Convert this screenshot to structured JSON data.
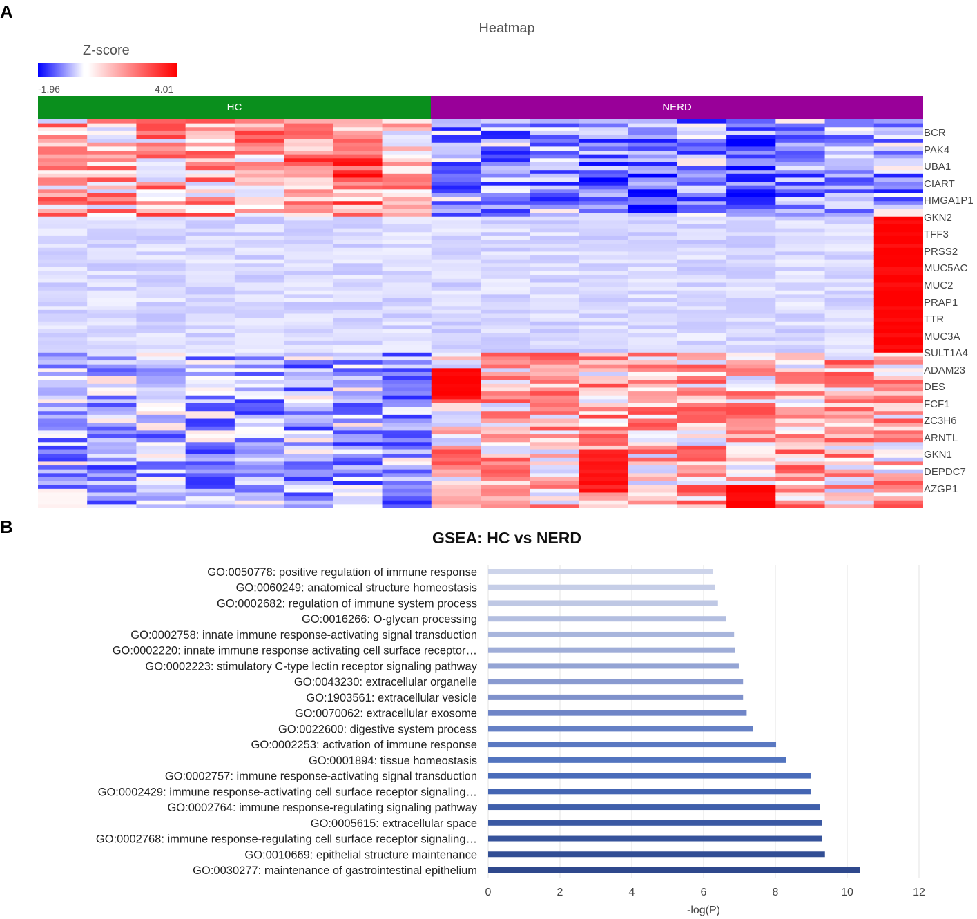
{
  "panel_a": {
    "letter": "A",
    "title": "Heatmap",
    "colorbar": {
      "title": "Z-score",
      "min": "-1.96",
      "max": "4.01",
      "low_color": "#0000ff",
      "mid_color": "#ffffff",
      "high_color": "#ff0000"
    },
    "groups": [
      {
        "label": "HC",
        "color": "#0a8f1d"
      },
      {
        "label": "NERD",
        "color": "#990099"
      }
    ],
    "gene_labels": [
      "BCR",
      "PAK4",
      "UBA1",
      "CIART",
      "HMGA1P1",
      "GKN2",
      "TFF3",
      "PRSS2",
      "MUC5AC",
      "MUC2",
      "PRAP1",
      "TTR",
      "MUC3A",
      "SULT1A4",
      "ADAM23",
      "DES",
      "FCF1",
      "ZC3H6",
      "ARNTL",
      "GKN1",
      "DEPDC7",
      "AZGP1"
    ]
  },
  "panel_b": {
    "letter": "B",
    "chart_data": {
      "type": "bar",
      "orientation": "horizontal",
      "title": "GSEA: HC vs NERD",
      "xlabel": "-log(P)",
      "ylabel": "",
      "xlim": [
        0,
        12
      ],
      "xticks": [
        "0",
        "2",
        "4",
        "6",
        "8",
        "10",
        "12"
      ],
      "grid": true,
      "categories": [
        "GO:0050778: positive regulation of immune response",
        "GO:0060249: anatomical structure homeostasis",
        "GO:0002682: regulation of immune system process",
        "GO:0016266: O-glycan processing",
        "GO:0002758: innate immune response-activating signal transduction",
        "GO:0002220: innate immune response activating cell surface receptor…",
        "GO:0002223: stimulatory C-type lectin receptor signaling pathway",
        "GO:0043230: extracellular organelle",
        "GO:1903561: extracellular vesicle",
        "GO:0070062: extracellular exosome",
        "GO:0022600: digestive system process",
        "GO:0002253: activation of immune response",
        "GO:0001894: tissue homeostasis",
        "GO:0002757: immune response-activating signal transduction",
        "GO:0002429: immune response-activating cell surface receptor signaling…",
        "GO:0002764: immune response-regulating signaling pathway",
        "GO:0005615: extracellular space",
        "GO:0002768: immune response-regulating cell surface receptor signaling…",
        "GO:0010669: epithelial structure maintenance",
        "GO:0030277: maintenance of gastrointestinal epithelium"
      ],
      "values": [
        6.25,
        6.32,
        6.4,
        6.62,
        6.85,
        6.88,
        6.98,
        7.1,
        7.1,
        7.2,
        7.38,
        8.02,
        8.3,
        8.98,
        8.98,
        9.25,
        9.3,
        9.3,
        9.38,
        10.35
      ],
      "bar_colors": [
        "#cdd4ea",
        "#c6cee7",
        "#bfc8e4",
        "#b3bee0",
        "#a8b5dc",
        "#9fadd8",
        "#94a4d4",
        "#899ad0",
        "#7f91cb",
        "#6f85c7",
        "#6580c5",
        "#5a78c1",
        "#5274bf",
        "#4a6cba",
        "#4465b3",
        "#3f5fab",
        "#3b59a3",
        "#36539b",
        "#324e94",
        "#2e488c"
      ]
    }
  }
}
